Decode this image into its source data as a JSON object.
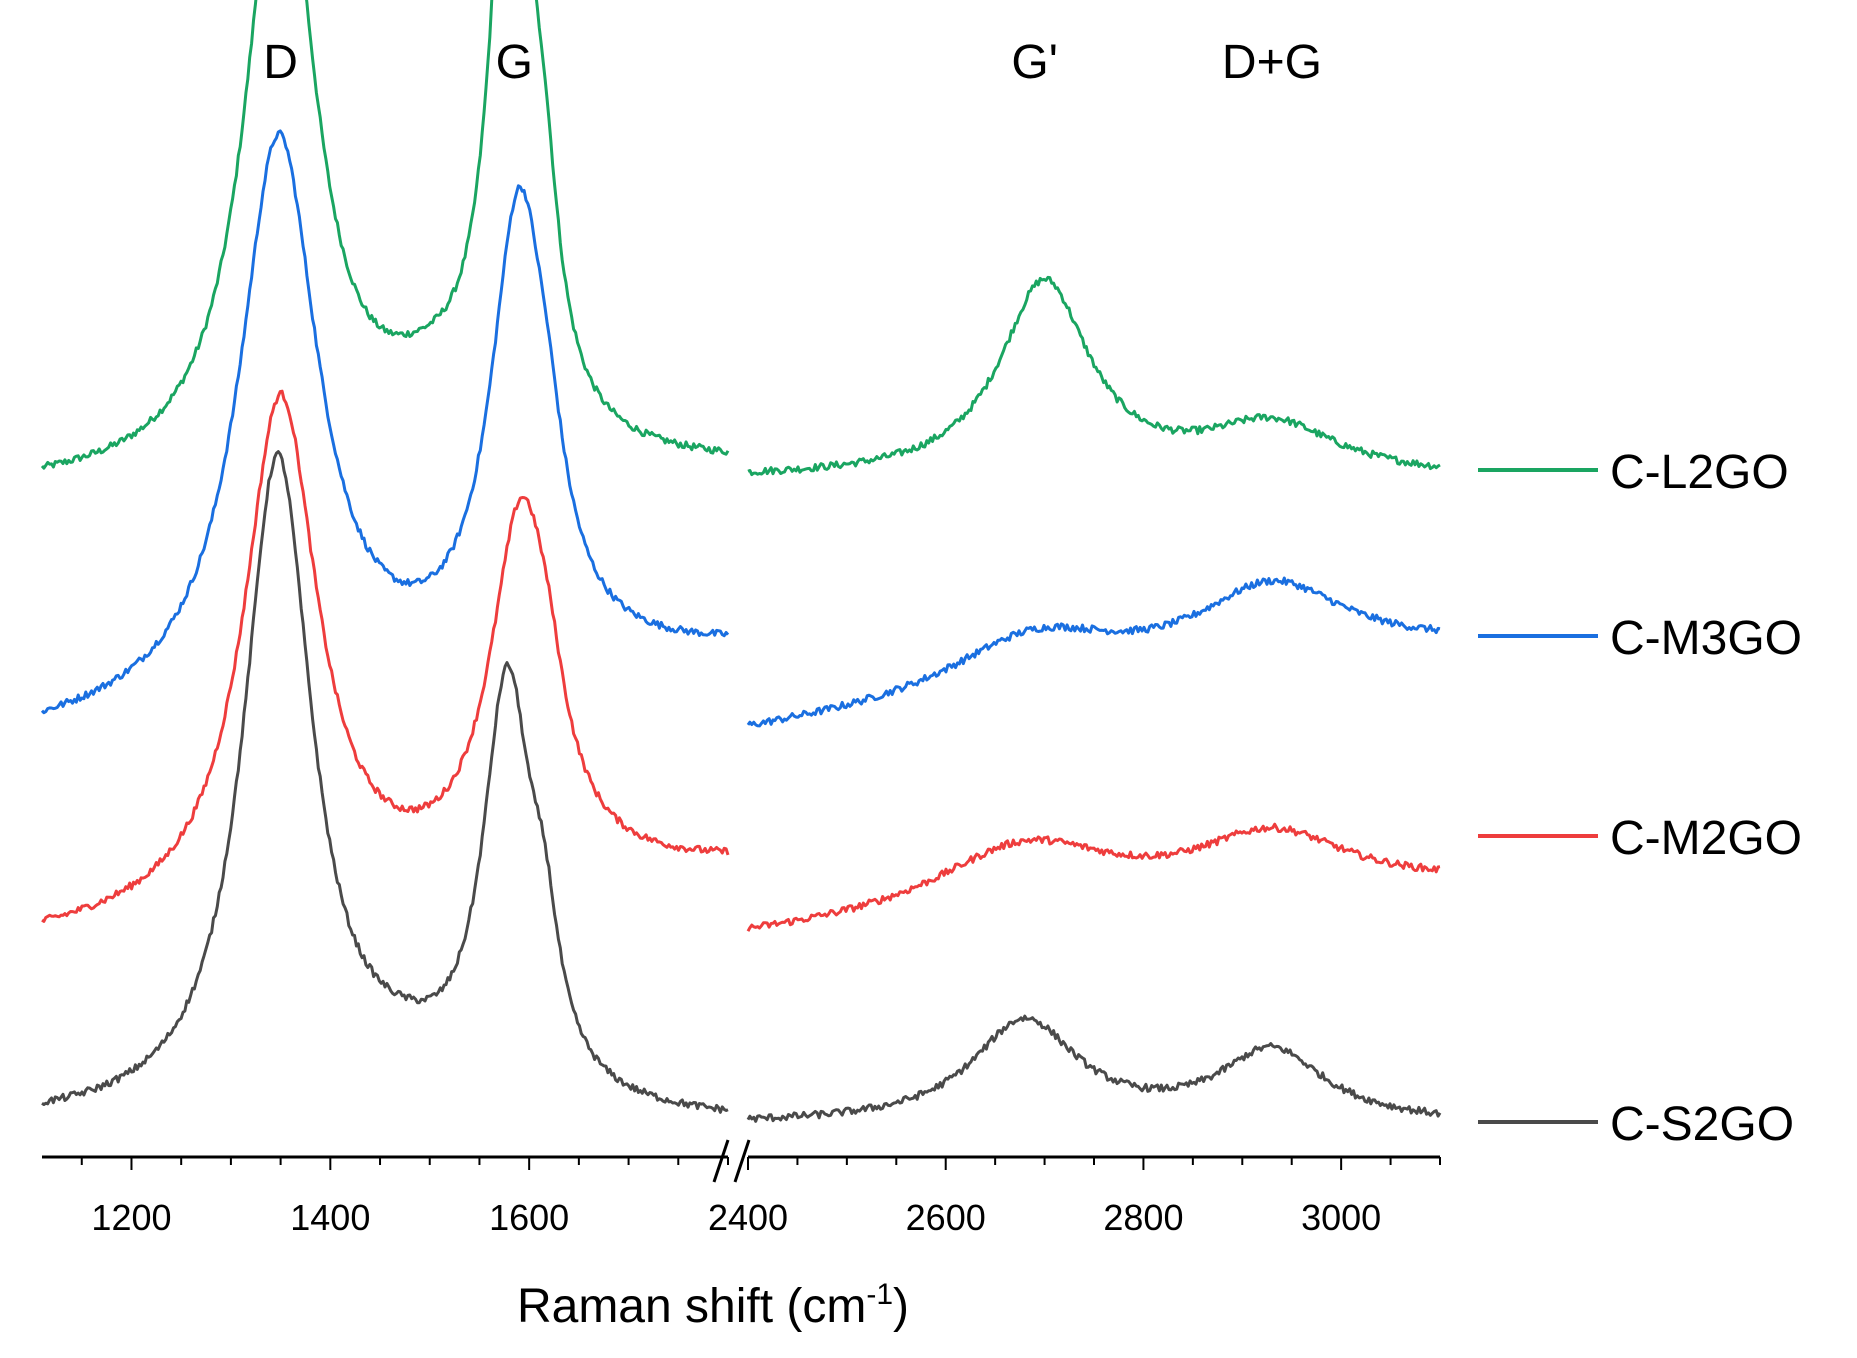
{
  "chart_data": {
    "type": "line",
    "title": "",
    "xlabel": {
      "main": "Raman shift (cm",
      "sup": "-1",
      "close": ")"
    },
    "ylabel": "",
    "x_axis_break": true,
    "segments": [
      {
        "xlim": [
          1110,
          1800
        ],
        "ticks": [
          1200,
          1400,
          1600
        ]
      },
      {
        "xlim": [
          2400,
          3100
        ],
        "ticks": [
          2400,
          2600,
          2800,
          3000
        ]
      }
    ],
    "peak_labels": [
      {
        "text": "D",
        "x": 1350,
        "segment": 0
      },
      {
        "text": "G",
        "x": 1585,
        "segment": 0
      },
      {
        "text": "G'",
        "x": 2690,
        "segment": 1
      },
      {
        "text": "D+G",
        "x": 2930,
        "segment": 1
      }
    ],
    "legend_position": "right",
    "series": [
      {
        "name": "C-L2GO",
        "color": "#1aa561",
        "offset": 0.62,
        "seg1": {
          "baseline": [
            0.0,
            0.02
          ],
          "peaks": [
            {
              "center": 1350,
              "height": 0.62,
              "width": 42
            },
            {
              "center": 1582,
              "height": 0.66,
              "width": 24
            },
            {
              "center": 1615,
              "height": 0.14,
              "width": 18
            },
            {
              "center": 1500,
              "height": 0.05,
              "width": 70
            }
          ]
        },
        "seg2": {
          "baseline": [
            0.01,
            0.01
          ],
          "peaks": [
            {
              "center": 2700,
              "height": 0.19,
              "width": 55
            },
            {
              "center": 2930,
              "height": 0.05,
              "width": 80
            }
          ]
        }
      },
      {
        "name": "C-M3GO",
        "color": "#1a6fe0",
        "offset": 0.38,
        "seg1": {
          "baseline": [
            0.0,
            0.08
          ],
          "peaks": [
            {
              "center": 1348,
              "height": 0.55,
              "width": 48
            },
            {
              "center": 1590,
              "height": 0.44,
              "width": 35
            },
            {
              "center": 1620,
              "height": 0.06,
              "width": 20
            }
          ]
        },
        "seg2": {
          "baseline": [
            0.0,
            0.08
          ],
          "peaks": [
            {
              "center": 2690,
              "height": 0.06,
              "width": 110
            },
            {
              "center": 2930,
              "height": 0.08,
              "width": 95
            }
          ]
        }
      },
      {
        "name": "C-M2GO",
        "color": "#ee3d3d",
        "offset": 0.18,
        "seg1": {
          "baseline": [
            0.0,
            0.07
          ],
          "peaks": [
            {
              "center": 1350,
              "height": 0.5,
              "width": 45
            },
            {
              "center": 1592,
              "height": 0.35,
              "width": 38
            },
            {
              "center": 1620,
              "height": 0.05,
              "width": 20
            }
          ]
        },
        "seg2": {
          "baseline": [
            0.0,
            0.05
          ],
          "peaks": [
            {
              "center": 2680,
              "height": 0.07,
              "width": 115
            },
            {
              "center": 2930,
              "height": 0.06,
              "width": 95
            }
          ]
        }
      },
      {
        "name": "C-S2GO",
        "color": "#4a4a4a",
        "offset": 0.0,
        "seg1": {
          "baseline": [
            0.0,
            0.0
          ],
          "peaks": [
            {
              "center": 1347,
              "height": 0.64,
              "width": 42
            },
            {
              "center": 1578,
              "height": 0.4,
              "width": 30
            },
            {
              "center": 1615,
              "height": 0.1,
              "width": 18
            },
            {
              "center": 1470,
              "height": 0.03,
              "width": 70
            }
          ]
        },
        "seg2": {
          "baseline": [
            0.0,
            0.0
          ],
          "peaks": [
            {
              "center": 2680,
              "height": 0.1,
              "width": 65
            },
            {
              "center": 2930,
              "height": 0.07,
              "width": 65
            }
          ]
        }
      }
    ]
  }
}
